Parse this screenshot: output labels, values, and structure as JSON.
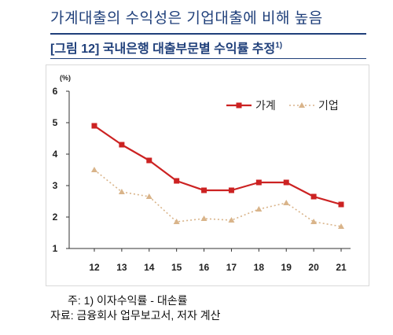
{
  "headline": "가계대출의 수익성은 기업대출에 비해 높음",
  "caption": {
    "text": "[그림 12] 국내은행 대출부문별 수익률 추정",
    "footnote_mark": "1)"
  },
  "notes": {
    "note": "주: 1) 이자수익률 - 대손률",
    "source": "자료: 금융회사 업무보고서, 저자 계산"
  },
  "colors": {
    "household": "#cc2222",
    "corporate": "#d9b48a"
  },
  "chart_data": {
    "type": "line",
    "x": [
      "12",
      "13",
      "14",
      "15",
      "16",
      "17",
      "18",
      "19",
      "20",
      "21"
    ],
    "yunit": "(%)",
    "ylim": [
      1,
      6
    ],
    "yticks": [
      "1",
      "2",
      "3",
      "4",
      "5",
      "6"
    ],
    "grid": false,
    "legend_position": "top-right",
    "series": [
      {
        "name": "가계",
        "marker": "square",
        "style": "solid",
        "values": [
          4.9,
          4.3,
          3.8,
          3.15,
          2.85,
          2.85,
          3.1,
          3.1,
          2.65,
          2.4
        ]
      },
      {
        "name": "기업",
        "marker": "triangle",
        "style": "dotted",
        "values": [
          3.5,
          2.8,
          2.65,
          1.85,
          1.95,
          1.9,
          2.25,
          2.45,
          1.85,
          1.7
        ]
      }
    ]
  }
}
